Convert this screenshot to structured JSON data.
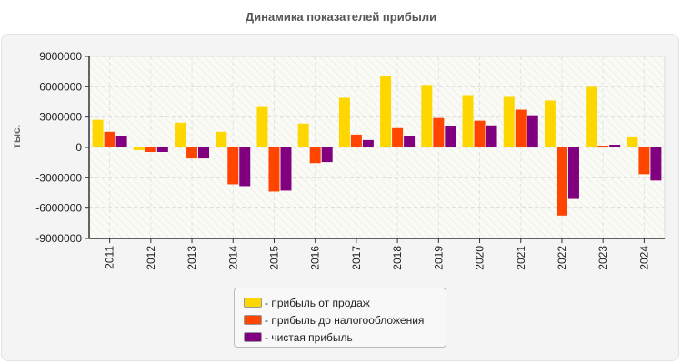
{
  "chart_data": {
    "type": "bar",
    "title": "Динамика показателей прибыли",
    "ylabel": "тыс.",
    "xlabel": "",
    "ylim": [
      -9000000,
      9000000
    ],
    "yticks": [
      "9000000",
      "6000000",
      "3000000",
      "0",
      "-3000000",
      "-6000000",
      "-9000000"
    ],
    "ytick_values": [
      9000000,
      6000000,
      3000000,
      0,
      -3000000,
      -6000000,
      -9000000
    ],
    "grid": true,
    "legend_position": "bottom",
    "categories": [
      "2011",
      "2012",
      "2013",
      "2014",
      "2015",
      "2016",
      "2017",
      "2018",
      "2019",
      "2020",
      "2021",
      "2022",
      "2023",
      "2024"
    ],
    "series": [
      {
        "name": "- прибыль от продаж",
        "color": "#FFD700",
        "values": [
          2730000,
          -270000,
          2450000,
          1550000,
          4000000,
          2360000,
          4910000,
          7090000,
          6180000,
          5180000,
          5000000,
          4640000,
          6000000,
          1000000
        ]
      },
      {
        "name": "- прибыль до налогообложения",
        "color": "#FF4500",
        "values": [
          1550000,
          -450000,
          -1090000,
          -3640000,
          -4360000,
          -1550000,
          1270000,
          1910000,
          2910000,
          2640000,
          3730000,
          -6730000,
          180000,
          -2640000
        ]
      },
      {
        "name": "- чистая прибыль",
        "color": "#800080",
        "values": [
          1090000,
          -450000,
          -1090000,
          -3820000,
          -4270000,
          -1450000,
          730000,
          1090000,
          2090000,
          2180000,
          3180000,
          -5090000,
          270000,
          -3270000
        ]
      }
    ]
  }
}
